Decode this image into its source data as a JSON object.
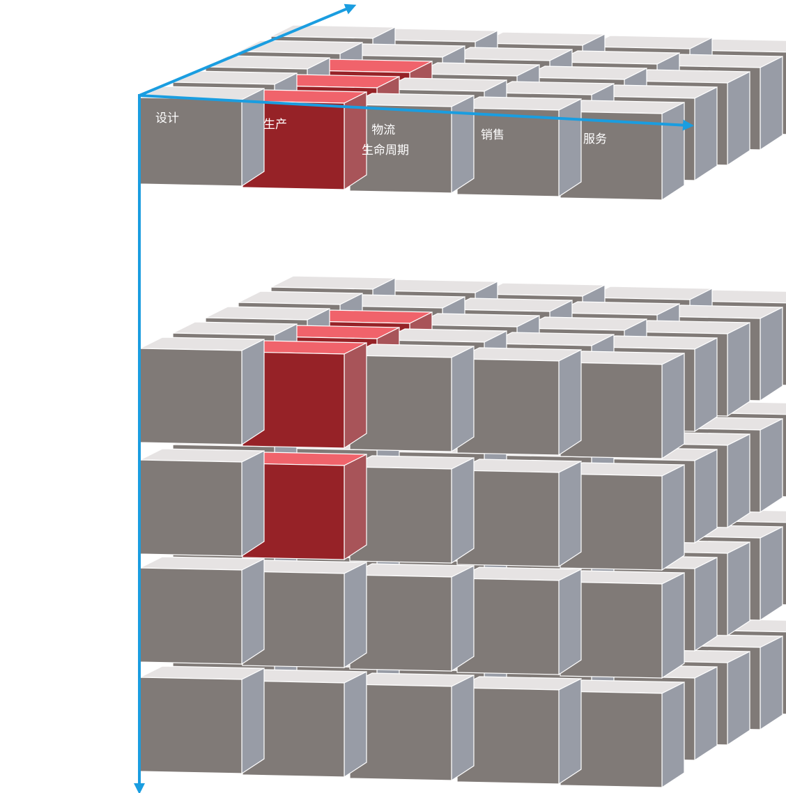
{
  "diagram": {
    "stages": [
      {
        "id": "design",
        "lines": [
          "设计"
        ],
        "highlight": false
      },
      {
        "id": "production",
        "lines": [
          "生产"
        ],
        "highlight": true
      },
      {
        "id": "logistics",
        "lines": [
          "物流",
          "生命周期"
        ],
        "highlight": false
      },
      {
        "id": "sales",
        "lines": [
          "销售"
        ],
        "highlight": false
      },
      {
        "id": "service",
        "lines": [
          "服务"
        ],
        "highlight": false
      }
    ],
    "depth_cells": 5,
    "top_layer_count": 1,
    "lower_layer_count": 4,
    "highlight_depth_cells_top": 3,
    "highlight_depth_cells_lower_layer1": 3,
    "highlight_depth_cells_lower_layer2": 1,
    "colors": {
      "cube_front": "#807a77",
      "cube_top": "#e6e3e3",
      "cube_side": "#989ca6",
      "highlight_front": "#962227",
      "highlight_top": "#f0636b",
      "highlight_side": "#a85459",
      "axis": "#1a9de0"
    }
  }
}
